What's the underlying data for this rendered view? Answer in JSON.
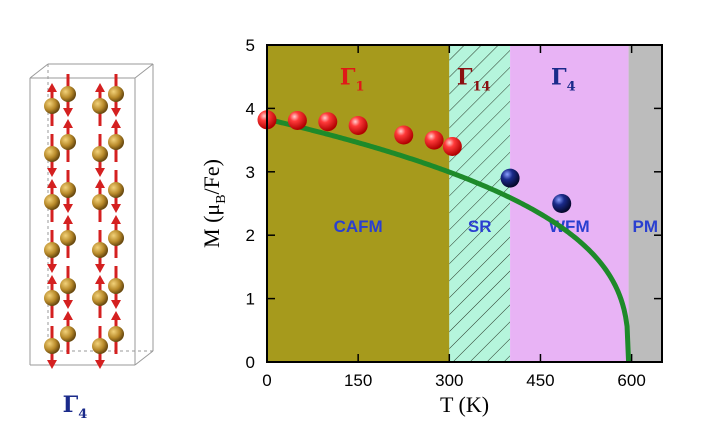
{
  "crystal": {
    "label_main": "Γ",
    "label_sub": "4",
    "label_color": "#1a2a8a"
  },
  "chart_data": {
    "type": "scatter",
    "xlabel_main": "T (K)",
    "ylabel_parts": {
      "pre": "M (μ",
      "sub": "B",
      "post": "/Fe)"
    },
    "xlim": [
      0,
      650
    ],
    "ylim": [
      0,
      5
    ],
    "xticks": [
      "0",
      "150",
      "300",
      "450",
      "600"
    ],
    "xtick_values": [
      0,
      150,
      300,
      450,
      600
    ],
    "yticks": [
      "0",
      "1",
      "2",
      "3",
      "4",
      "5"
    ],
    "ytick_values": [
      0,
      1,
      2,
      3,
      4,
      5
    ],
    "regions": [
      {
        "name": "CAFM",
        "x_start": 0,
        "x_end": 300,
        "color": "#a69a1c",
        "hatched": false,
        "phase_main": "Γ",
        "phase_sub": "1",
        "phase_color": "#e01818"
      },
      {
        "name": "SR",
        "x_start": 300,
        "x_end": 400,
        "color": "#b5f5dc",
        "hatched": true,
        "phase_main": "Γ",
        "phase_sub": "14",
        "phase_color": "#8a1010"
      },
      {
        "name": "WFM",
        "x_start": 400,
        "x_end": 595,
        "color": "#e8b3f5",
        "hatched": false,
        "phase_main": "Γ",
        "phase_sub": "4",
        "phase_color": "#1a2a8a"
      },
      {
        "name": "PM",
        "x_start": 595,
        "x_end": 650,
        "color": "#bcbcbc",
        "hatched": false,
        "phase_main": "",
        "phase_sub": "",
        "phase_color": "#1a2a8a"
      }
    ],
    "series": [
      {
        "marker_color": "#ff2a2a",
        "x": [
          0,
          50,
          100,
          150,
          225,
          275,
          305
        ],
        "y": [
          3.82,
          3.81,
          3.79,
          3.73,
          3.58,
          3.5,
          3.4
        ]
      },
      {
        "marker_color": "#1a2a8a",
        "x": [
          400,
          485
        ],
        "y": [
          2.9,
          2.5
        ]
      }
    ],
    "fit_curve": {
      "color": "#1e8a2a",
      "type": "power-law",
      "M0": 3.83,
      "Tc": 595,
      "beta": 0.35
    }
  }
}
